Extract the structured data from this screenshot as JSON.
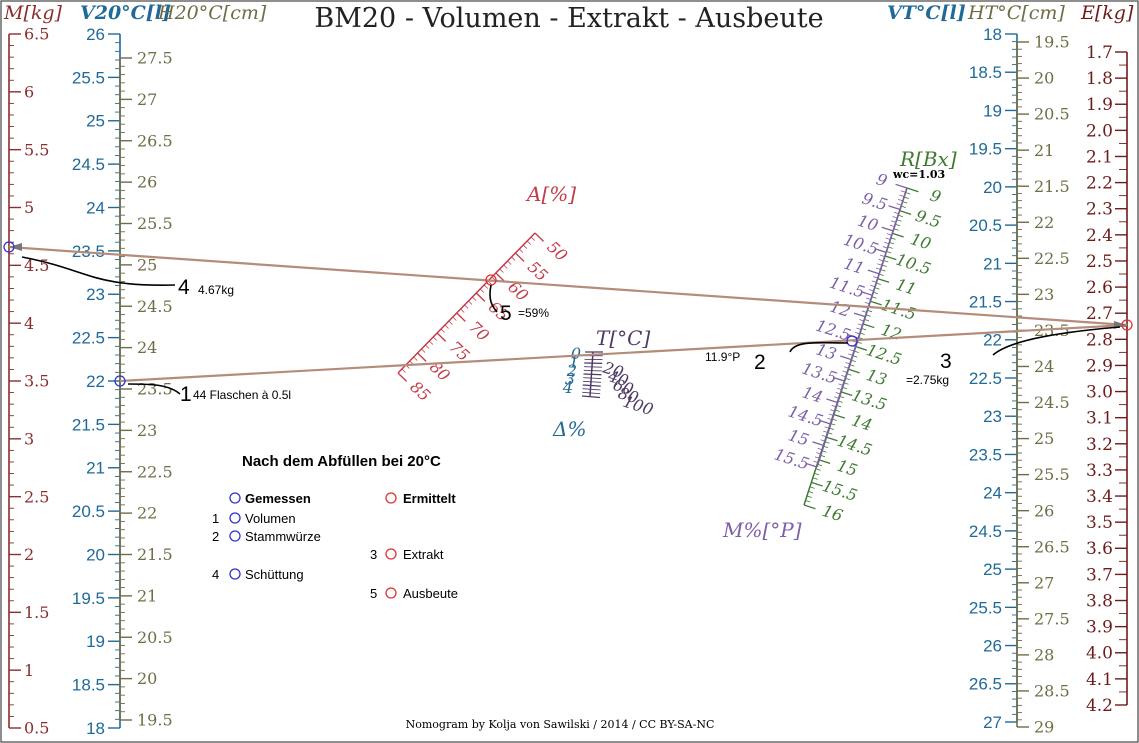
{
  "title": "BM20 - Volumen - Extrakt - Ausbeute",
  "footer": "Nomogram by Kolja von Sawilski / 2014 / CC BY-SA-NC",
  "colors": {
    "mass": "#8b2e2e",
    "volume20": "#1f6a99",
    "height20": "#6f6d45",
    "alcohol": "#c23b49",
    "temperature": "#246a96",
    "temperature_scale": "#4f3a66",
    "plato": "#7d5fa8",
    "brix": "#3e7a32",
    "volumeT": "#1f6a99",
    "heightT": "#6f6d45",
    "extract": "#6e1b1b",
    "isopleth": "#b48c7a",
    "measured": "#3333cc",
    "derived": "#dd3333"
  },
  "axes": {
    "mass": {
      "label": "M[kg]",
      "min": 0.5,
      "max": 6.5,
      "major": [
        "0.5",
        "1",
        "1.5",
        "2",
        "2.5",
        "3",
        "3.5",
        "4",
        "4.5",
        "5",
        "5.5",
        "6",
        "6.5"
      ]
    },
    "volume20": {
      "label": "V20°C[l]",
      "min": 18,
      "max": 26,
      "major": [
        "18",
        "18.5",
        "19",
        "19.5",
        "20",
        "20.5",
        "21",
        "21.5",
        "22",
        "22.5",
        "23",
        "23.5",
        "24",
        "24.5",
        "25",
        "25.5",
        "26"
      ]
    },
    "height20": {
      "label": "H20°C[cm]",
      "major": [
        "19.5",
        "20",
        "20.5",
        "21",
        "21.5",
        "22",
        "22.5",
        "23",
        "23.5",
        "24",
        "24.5",
        "25",
        "25.5",
        "26",
        "26.5",
        "27",
        "27.5"
      ]
    },
    "alcohol": {
      "label": "A[%]",
      "major": [
        "50",
        "55",
        "60",
        "65",
        "70",
        "75",
        "80",
        "85"
      ]
    },
    "temperature": {
      "label": "T[°C]",
      "left": [
        "0",
        "1",
        "2",
        "3",
        "4"
      ],
      "right": [
        "20",
        "40",
        "60",
        "80",
        "100"
      ]
    },
    "delta": {
      "label": "Δ%"
    },
    "plato": {
      "label": "M%[°P]",
      "major": [
        "9",
        "9.5",
        "10",
        "10.5",
        "11",
        "11.5",
        "12",
        "12.5",
        "13",
        "13.5",
        "14",
        "14.5",
        "15",
        "15.5"
      ]
    },
    "brix": {
      "label": "R[Bx]",
      "wc": "wc=1.03",
      "major": [
        "9",
        "9.5",
        "10",
        "10.5",
        "11",
        "11.5",
        "12",
        "12.5",
        "13",
        "13.5",
        "14",
        "14.5",
        "15",
        "15.5",
        "16"
      ]
    },
    "volumeT": {
      "label": "VT°C[l]",
      "min": 18,
      "max": 27,
      "major": [
        "18",
        "18.5",
        "19",
        "19.5",
        "20",
        "20.5",
        "21",
        "21.5",
        "22",
        "22.5",
        "23",
        "23.5",
        "24",
        "24.5",
        "25",
        "25.5",
        "26",
        "26.5",
        "27"
      ]
    },
    "heightT": {
      "label": "HT°C[cm]",
      "major": [
        "19.5",
        "20",
        "20.5",
        "21",
        "21.5",
        "22",
        "22.5",
        "23",
        "23.5",
        "24",
        "24.5",
        "25",
        "25.5",
        "26",
        "26.5",
        "27",
        "27.5",
        "28",
        "28.5",
        "29"
      ]
    },
    "extract": {
      "label": "E[kg]",
      "min": 1.7,
      "max": 4.2,
      "major": [
        "1.7",
        "1.8",
        "1.9",
        "2.0",
        "2.1",
        "2.2",
        "2.3",
        "2.4",
        "2.5",
        "2.6",
        "2.7",
        "2.8",
        "2.9",
        "3.0",
        "3.1",
        "3.2",
        "3.3",
        "3.4",
        "3.5",
        "3.6",
        "3.7",
        "3.8",
        "3.9",
        "4.0",
        "4.1",
        "4.2"
      ]
    }
  },
  "callouts": {
    "volume": {
      "num": "1",
      "text": "44 Flaschen à 0.5l",
      "value": 22
    },
    "plato": {
      "num": "2",
      "text": "11.9°P",
      "value": 11.9
    },
    "extract": {
      "num": "3",
      "text": "=2.75kg",
      "value": 2.75
    },
    "mass": {
      "num": "4",
      "text": "4.67kg",
      "value": 4.67
    },
    "alcohol": {
      "num": "5",
      "text": "=59%",
      "value": 59
    }
  },
  "legend": {
    "title": "Nach dem Abfüllen bei 20°C",
    "measured_header": "Gemessen",
    "derived_header": "Ermittelt",
    "items": [
      {
        "num": "1",
        "label": "Volumen",
        "kind": "measured"
      },
      {
        "num": "2",
        "label": "Stammwürze",
        "kind": "measured"
      },
      {
        "num": "3",
        "label": "Extrakt",
        "kind": "derived"
      },
      {
        "num": "4",
        "label": "Schüttung",
        "kind": "measured"
      },
      {
        "num": "5",
        "label": "Ausbeute",
        "kind": "derived"
      }
    ]
  }
}
